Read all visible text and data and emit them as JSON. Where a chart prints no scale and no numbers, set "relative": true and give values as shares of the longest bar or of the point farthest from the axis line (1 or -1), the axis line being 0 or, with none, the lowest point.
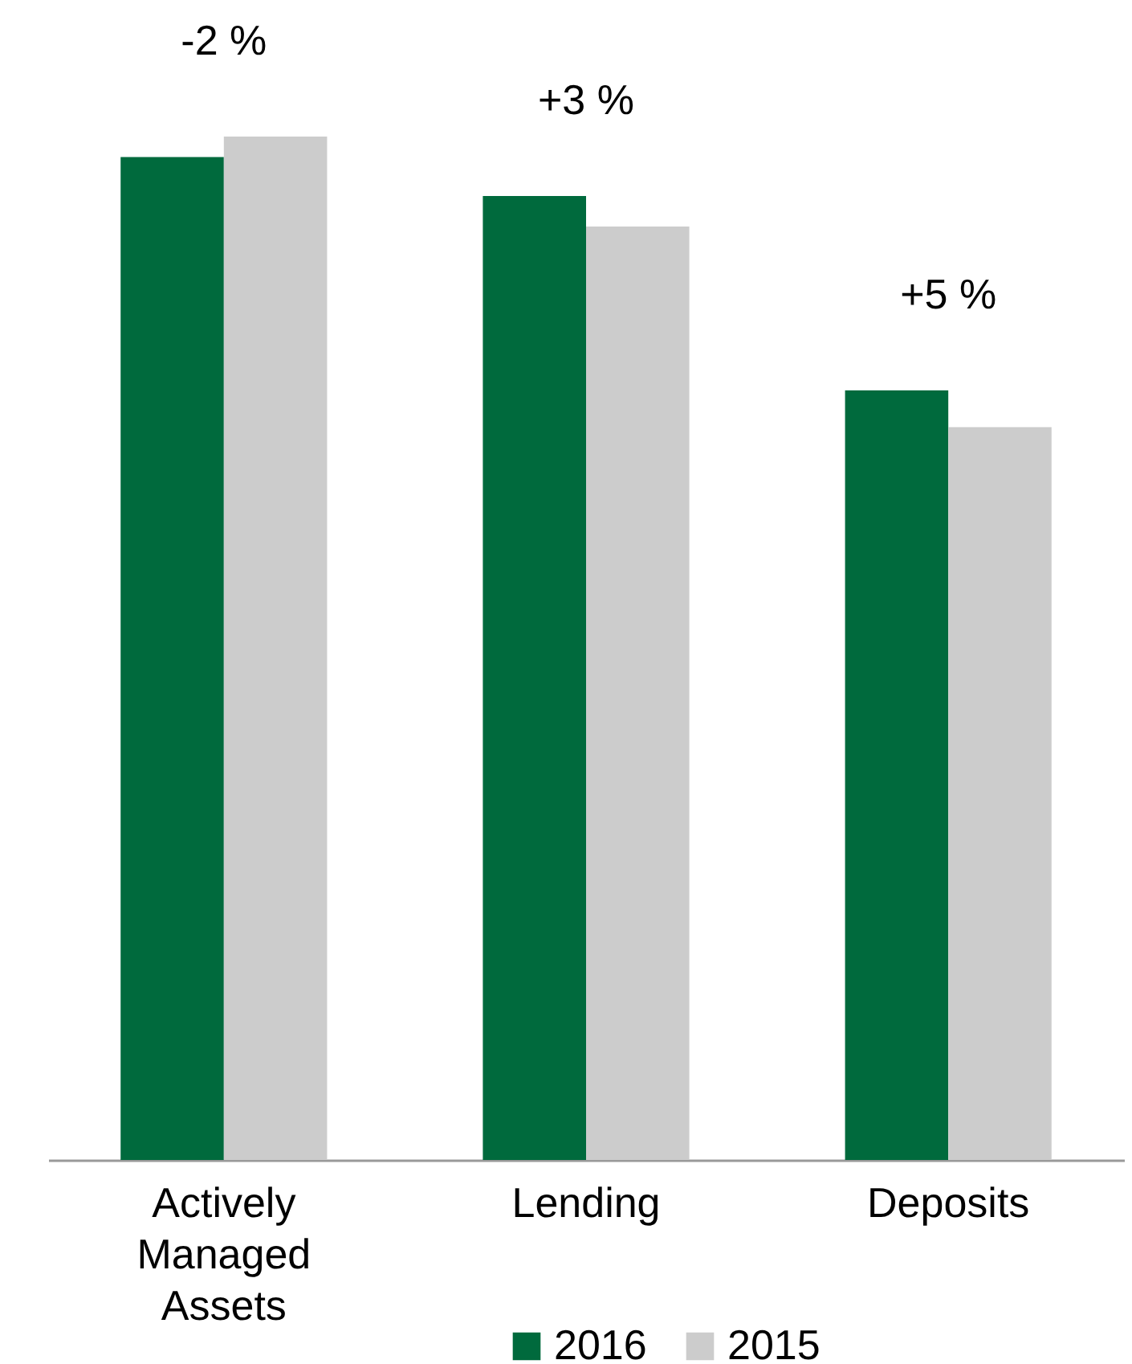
{
  "chart_data": {
    "type": "bar",
    "relative": true,
    "categories": [
      "Actively Managed Assets",
      "Lending",
      "Deposits"
    ],
    "series": [
      {
        "name": "2016",
        "color": "#006a3d",
        "values": [
          0.98,
          0.942,
          0.752
        ]
      },
      {
        "name": "2015",
        "color": "#cccccc",
        "values": [
          1,
          0.912,
          0.716
        ]
      }
    ],
    "annotations": [
      {
        "text": "-2 %",
        "x": "Actively Managed Assets",
        "y": 1
      },
      {
        "text": "+3 %",
        "x": "Lending",
        "y": 0.942
      },
      {
        "text": "+5 %",
        "x": "Deposits",
        "y": 0.752
      }
    ],
    "legend": "bottom"
  }
}
